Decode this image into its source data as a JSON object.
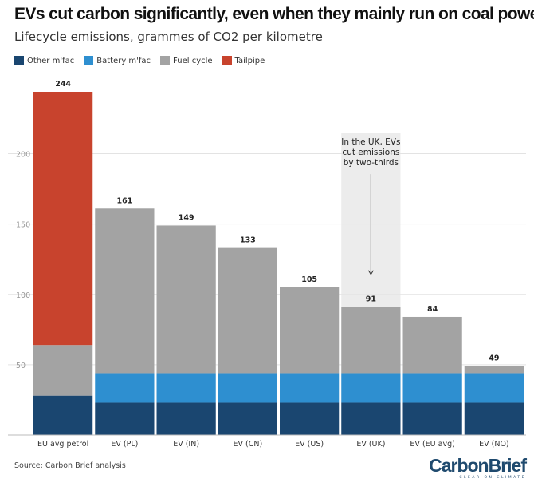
{
  "title": "EVs cut carbon significantly, even when they mainly run on coal power",
  "subtitle": "Lifecycle emissions, grammes of CO2 per kilometre",
  "legend": [
    {
      "label": "Other m'fac",
      "color": "#1a4670"
    },
    {
      "label": "Battery m'fac",
      "color": "#2e8fd0"
    },
    {
      "label": "Fuel cycle",
      "color": "#a3a3a3"
    },
    {
      "label": "Tailpipe",
      "color": "#c8432d"
    }
  ],
  "source": "Source: Carbon Brief analysis",
  "logo": {
    "main": "CarbonBrief",
    "tagline": "CLEAR ON CLIMATE"
  },
  "annotation": {
    "lines": [
      "In the UK, EVs",
      "cut emissions",
      "by two-thirds"
    ],
    "category": "EV (UK)"
  },
  "chart_data": {
    "type": "bar",
    "stacked": true,
    "categories": [
      "EU avg petrol",
      "EV (PL)",
      "EV (IN)",
      "EV (CN)",
      "EV (US)",
      "EV (UK)",
      "EV (EU avg)",
      "EV (NO)"
    ],
    "series": [
      {
        "name": "Other m'fac",
        "color": "#1a4670",
        "values": [
          28,
          23,
          23,
          23,
          23,
          23,
          23,
          23
        ]
      },
      {
        "name": "Battery m'fac",
        "color": "#2e8fd0",
        "values": [
          0,
          21,
          21,
          21,
          21,
          21,
          21,
          21
        ]
      },
      {
        "name": "Fuel cycle",
        "color": "#a3a3a3",
        "values": [
          36,
          117,
          105,
          89,
          61,
          47,
          40,
          5
        ]
      },
      {
        "name": "Tailpipe",
        "color": "#c8432d",
        "values": [
          180,
          0,
          0,
          0,
          0,
          0,
          0,
          0
        ]
      }
    ],
    "totals": [
      244,
      161,
      149,
      133,
      105,
      91,
      84,
      49
    ],
    "total_labels": [
      "244",
      "161",
      "149",
      "133",
      "105",
      "91",
      "84",
      "49"
    ],
    "yticks": [
      50,
      100,
      150,
      200
    ],
    "ytick_labels": [
      "50",
      "100",
      "150",
      "200"
    ],
    "ylim": [
      0,
      244
    ],
    "xlabel": "",
    "ylabel": ""
  }
}
